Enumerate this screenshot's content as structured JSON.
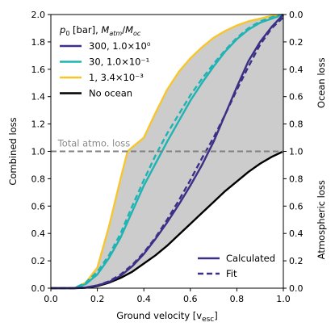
{
  "chart_data": {
    "type": "line",
    "xlabel": "Ground velocity [v",
    "xlabel_sub": "esc",
    "xlabel_close": "]",
    "ylabel_left": "Combined loss",
    "ylabel_right_top": "Ocean loss",
    "ylabel_right_bottom": "Atmospheric loss",
    "xlim": [
      0.0,
      1.0
    ],
    "ylim": [
      0.0,
      2.0
    ],
    "x_ticks": [
      "0.0",
      "0.2",
      "0.4",
      "0.6",
      "0.8",
      "1.0"
    ],
    "y_ticks_left": [
      "0.0",
      "0.2",
      "0.4",
      "0.6",
      "0.8",
      "1.0",
      "1.2",
      "1.4",
      "1.6",
      "1.8",
      "2.0"
    ],
    "y_ticks_right": [
      "0.0",
      "0.2",
      "0.4",
      "0.6",
      "0.8",
      "1.0",
      "0.8",
      "0.6",
      "0.4",
      "0.2",
      "0.0"
    ],
    "reference_line": {
      "y": 1.0,
      "label": "Total atmo. loss",
      "color": "#808080"
    },
    "legend_title": "p0 [bar], Matm/Moc",
    "shaded_region_color": "#cccccc",
    "series": [
      {
        "name": "300, 1.0×10⁰",
        "color": "#3b2f86",
        "calculated": {
          "x": [
            0,
            0.1,
            0.15,
            0.2,
            0.25,
            0.3,
            0.35,
            0.4,
            0.45,
            0.5,
            0.55,
            0.6,
            0.65,
            0.7,
            0.75,
            0.8,
            0.85,
            0.9,
            0.95,
            1.0
          ],
          "y": [
            0,
            0,
            0.005,
            0.02,
            0.045,
            0.09,
            0.16,
            0.25,
            0.36,
            0.48,
            0.61,
            0.75,
            0.9,
            1.07,
            1.27,
            1.47,
            1.66,
            1.8,
            1.91,
            2.0
          ]
        },
        "fit": {
          "x": [
            0,
            0.1,
            0.15,
            0.2,
            0.25,
            0.3,
            0.35,
            0.4,
            0.45,
            0.5,
            0.55,
            0.6,
            0.65,
            0.7,
            0.75,
            0.8,
            0.85,
            0.9,
            0.95,
            1.0
          ],
          "y": [
            0,
            0,
            0.005,
            0.02,
            0.05,
            0.1,
            0.17,
            0.26,
            0.37,
            0.5,
            0.64,
            0.79,
            0.95,
            1.1,
            1.27,
            1.45,
            1.62,
            1.78,
            1.9,
            1.98
          ]
        }
      },
      {
        "name": "30, 1.0×10⁻¹",
        "color": "#1fb3b3",
        "calculated": {
          "x": [
            0,
            0.1,
            0.15,
            0.2,
            0.25,
            0.3,
            0.35,
            0.4,
            0.45,
            0.5,
            0.55,
            0.6,
            0.65,
            0.7,
            0.75,
            0.8,
            0.85,
            0.9,
            0.95,
            1.0
          ],
          "y": [
            0,
            0,
            0.03,
            0.1,
            0.22,
            0.37,
            0.56,
            0.75,
            0.91,
            1.07,
            1.22,
            1.37,
            1.5,
            1.62,
            1.73,
            1.82,
            1.89,
            1.94,
            1.97,
            2.0
          ]
        },
        "fit": {
          "x": [
            0,
            0.1,
            0.15,
            0.2,
            0.25,
            0.3,
            0.35,
            0.4,
            0.45,
            0.5,
            0.55,
            0.6,
            0.65,
            0.7,
            0.75,
            0.8,
            0.85,
            0.9,
            0.95,
            1.0
          ],
          "y": [
            0,
            0,
            0.04,
            0.12,
            0.24,
            0.4,
            0.6,
            0.79,
            0.97,
            1.13,
            1.27,
            1.41,
            1.53,
            1.64,
            1.74,
            1.83,
            1.9,
            1.95,
            1.98,
            2.0
          ]
        }
      },
      {
        "name": "1, 3.4×10⁻³",
        "color": "#f7c52d",
        "calculated": {
          "x": [
            0,
            0.1,
            0.15,
            0.2,
            0.25,
            0.3,
            0.33,
            0.35,
            0.4,
            0.45,
            0.5,
            0.55,
            0.6,
            0.65,
            0.7,
            0.75,
            0.8,
            0.85,
            0.9,
            0.95,
            1.0
          ],
          "y": [
            0,
            0,
            0.04,
            0.15,
            0.45,
            0.8,
            1.0,
            1.03,
            1.1,
            1.28,
            1.45,
            1.58,
            1.68,
            1.76,
            1.83,
            1.88,
            1.92,
            1.95,
            1.97,
            1.99,
            2.0
          ]
        }
      },
      {
        "name": "No ocean",
        "color": "#000000",
        "calculated": {
          "x": [
            0,
            0.1,
            0.15,
            0.2,
            0.25,
            0.3,
            0.35,
            0.4,
            0.45,
            0.5,
            0.55,
            0.6,
            0.65,
            0.7,
            0.75,
            0.8,
            0.85,
            0.9,
            0.95,
            1.0
          ],
          "y": [
            0,
            0,
            0.003,
            0.015,
            0.04,
            0.075,
            0.12,
            0.18,
            0.24,
            0.31,
            0.39,
            0.47,
            0.55,
            0.63,
            0.71,
            0.78,
            0.85,
            0.91,
            0.96,
            1.0
          ]
        }
      }
    ],
    "style_legend": [
      {
        "label": "Calculated",
        "dash": false
      },
      {
        "label": "Fit",
        "dash": true
      }
    ]
  }
}
